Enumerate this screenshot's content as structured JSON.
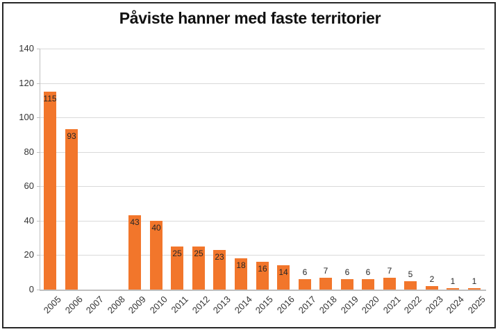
{
  "chart_data": {
    "type": "bar",
    "title": "Påviste hanner med faste territorier",
    "categories": [
      "2005",
      "2006",
      "2007",
      "2008",
      "2009",
      "2010",
      "2011",
      "2012",
      "2013",
      "2014",
      "2015",
      "2016",
      "2017",
      "2018",
      "2019",
      "2020",
      "2021",
      "2022",
      "2023",
      "2024",
      "2025"
    ],
    "values": [
      115,
      93,
      null,
      null,
      43,
      40,
      25,
      25,
      23,
      18,
      16,
      14,
      6,
      7,
      6,
      6,
      7,
      5,
      2,
      1,
      1
    ],
    "xlabel": "",
    "ylabel": "",
    "ylim": [
      0,
      140
    ],
    "ytick_step": 20,
    "ytick_labels": [
      "0",
      "20",
      "40",
      "60",
      "80",
      "100",
      "120",
      "140"
    ],
    "grid": true,
    "legend": "none",
    "data_labels": true,
    "data_label_placement": "inside bar top for values >= 14, above bar for smaller values",
    "missing_years_without_bars": [
      "2007",
      "2008"
    ]
  },
  "colors": {
    "bar": "#F2762B",
    "gridline": "#D9D9D9",
    "axis_line": "#BFBFBF",
    "tick_label": "#333333",
    "data_label": "#262626",
    "title": "#111111",
    "frame_border": "#262626",
    "background": "#FFFFFF"
  }
}
